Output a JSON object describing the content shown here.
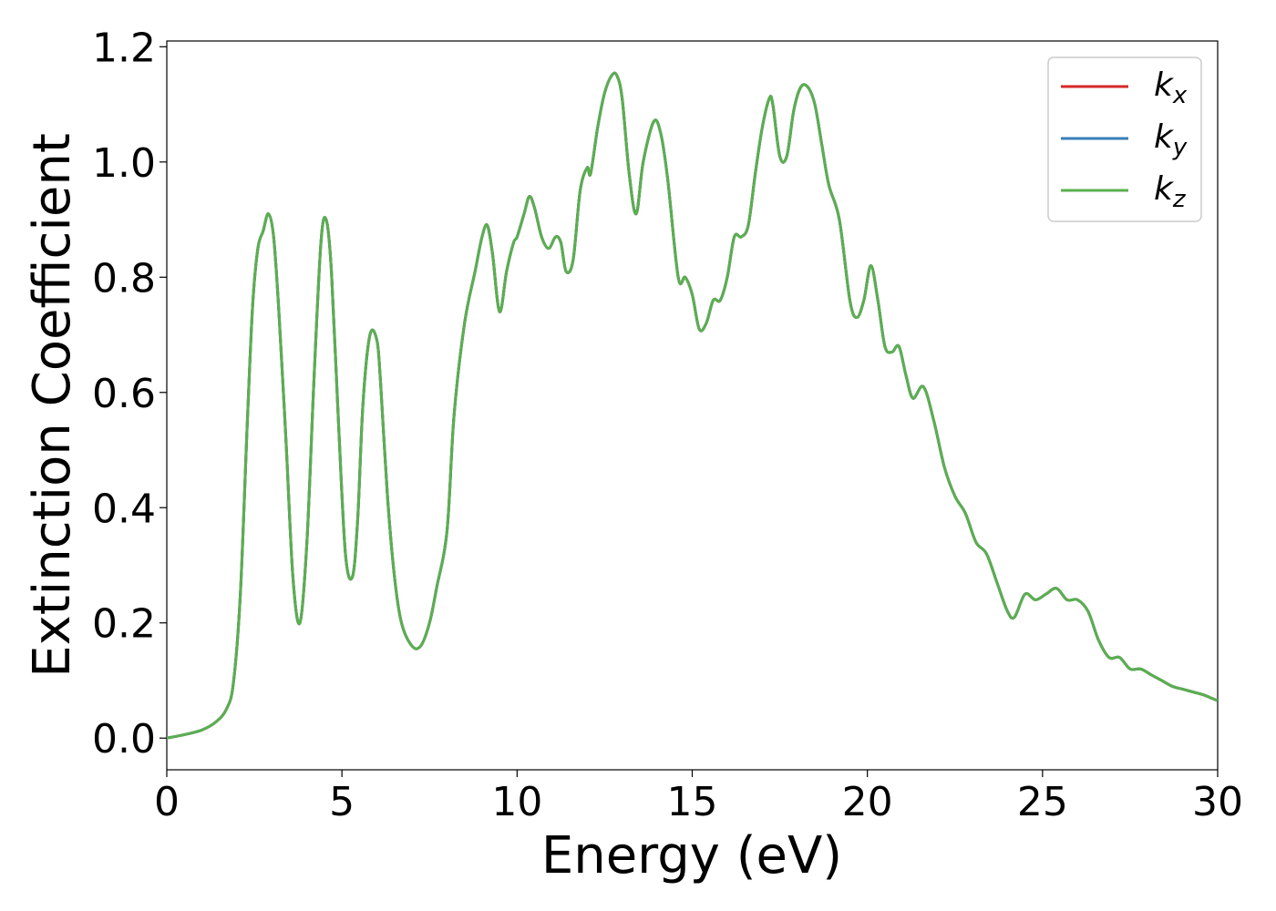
{
  "chart_data": {
    "type": "line",
    "xlabel": "Energy (eV)",
    "ylabel": "Extinction Coefficient",
    "xlim": [
      0,
      30
    ],
    "ylim": [
      -0.055,
      1.21
    ],
    "x_ticks": [
      "0",
      "5",
      "10",
      "15",
      "20",
      "25",
      "30"
    ],
    "x_tick_values": [
      0,
      5,
      10,
      15,
      20,
      25,
      30
    ],
    "y_ticks": [
      "0.0",
      "0.2",
      "0.4",
      "0.6",
      "0.8",
      "1.0",
      "1.2"
    ],
    "y_tick_values": [
      0.0,
      0.2,
      0.4,
      0.6,
      0.8,
      1.0,
      1.2
    ],
    "grid": false,
    "legend_position": "upper right",
    "series": [
      {
        "name_base": "k",
        "name_sub": "x",
        "color": "#d62728",
        "x": [
          0,
          0.5,
          1.0,
          1.4,
          1.7,
          1.9,
          2.1,
          2.3,
          2.45,
          2.6,
          2.75,
          2.9,
          3.05,
          3.2,
          3.4,
          3.6,
          3.8,
          4.0,
          4.2,
          4.4,
          4.55,
          4.7,
          4.9,
          5.1,
          5.3,
          5.45,
          5.6,
          5.8,
          6.0,
          6.1,
          6.3,
          6.5,
          6.7,
          7.0,
          7.25,
          7.5,
          7.7,
          8.0,
          8.2,
          8.5,
          8.8,
          9.0,
          9.15,
          9.3,
          9.5,
          9.7,
          9.9,
          10.0,
          10.2,
          10.35,
          10.5,
          10.7,
          10.9,
          11.1,
          11.25,
          11.4,
          11.6,
          11.8,
          12.0,
          12.1,
          12.3,
          12.5,
          12.7,
          12.85,
          13.0,
          13.2,
          13.4,
          13.6,
          13.9,
          14.1,
          14.3,
          14.6,
          14.8,
          15.0,
          15.2,
          15.4,
          15.6,
          15.8,
          16.0,
          16.2,
          16.4,
          16.6,
          16.8,
          17.0,
          17.2,
          17.3,
          17.5,
          17.7,
          17.9,
          18.1,
          18.3,
          18.5,
          18.7,
          18.9,
          19.2,
          19.5,
          19.7,
          19.9,
          20.1,
          20.3,
          20.5,
          20.7,
          20.9,
          21.1,
          21.3,
          21.6,
          21.9,
          22.2,
          22.5,
          22.8,
          23.1,
          23.4,
          23.7,
          24.0,
          24.2,
          24.5,
          24.8,
          25.1,
          25.4,
          25.7,
          26.0,
          26.3,
          26.6,
          26.9,
          27.2,
          27.5,
          27.8,
          28.1,
          28.4,
          28.7,
          29.0,
          29.3,
          29.6,
          29.8,
          30.0
        ],
        "y": [
          0.0,
          0.006,
          0.014,
          0.028,
          0.05,
          0.095,
          0.25,
          0.55,
          0.75,
          0.85,
          0.88,
          0.91,
          0.87,
          0.74,
          0.52,
          0.28,
          0.2,
          0.34,
          0.62,
          0.86,
          0.9,
          0.81,
          0.55,
          0.32,
          0.28,
          0.38,
          0.58,
          0.7,
          0.69,
          0.62,
          0.42,
          0.28,
          0.2,
          0.16,
          0.16,
          0.2,
          0.26,
          0.36,
          0.56,
          0.72,
          0.81,
          0.87,
          0.89,
          0.84,
          0.74,
          0.81,
          0.86,
          0.87,
          0.91,
          0.94,
          0.92,
          0.87,
          0.85,
          0.87,
          0.86,
          0.81,
          0.83,
          0.95,
          0.99,
          0.98,
          1.06,
          1.12,
          1.15,
          1.15,
          1.11,
          0.98,
          0.91,
          1.0,
          1.07,
          1.05,
          0.97,
          0.8,
          0.8,
          0.77,
          0.71,
          0.72,
          0.76,
          0.76,
          0.8,
          0.87,
          0.87,
          0.89,
          0.98,
          1.06,
          1.11,
          1.1,
          1.01,
          1.01,
          1.09,
          1.13,
          1.13,
          1.1,
          1.03,
          0.96,
          0.9,
          0.76,
          0.73,
          0.76,
          0.82,
          0.76,
          0.68,
          0.67,
          0.68,
          0.63,
          0.59,
          0.61,
          0.55,
          0.47,
          0.42,
          0.39,
          0.34,
          0.32,
          0.27,
          0.22,
          0.21,
          0.25,
          0.24,
          0.25,
          0.26,
          0.24,
          0.24,
          0.22,
          0.17,
          0.14,
          0.14,
          0.12,
          0.12,
          0.11,
          0.1,
          0.09,
          0.085,
          0.08,
          0.075,
          0.07,
          0.065
        ]
      },
      {
        "name_base": "k",
        "name_sub": "y",
        "color": "#377eb8",
        "same_as": "k_x"
      },
      {
        "name_base": "k",
        "name_sub": "z",
        "color": "#5aaf4f",
        "same_as": "k_x"
      }
    ]
  }
}
